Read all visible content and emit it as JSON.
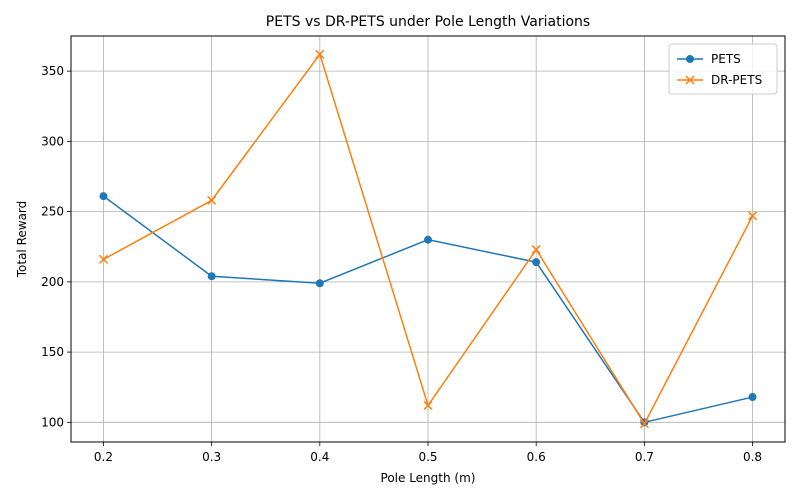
{
  "chart_data": {
    "type": "line",
    "title": "PETS vs DR-PETS under Pole Length Variations",
    "xlabel": "Pole Length (m)",
    "ylabel": "Total Reward",
    "x": [
      0.2,
      0.3,
      0.4,
      0.5,
      0.6,
      0.7,
      0.8
    ],
    "x_tick_labels": [
      "0.2",
      "0.3",
      "0.4",
      "0.5",
      "0.6",
      "0.7",
      "0.8"
    ],
    "y_ticks": [
      100,
      150,
      200,
      250,
      300,
      350
    ],
    "y_tick_labels": [
      "100",
      "150",
      "200",
      "250",
      "300",
      "350"
    ],
    "xlim": [
      0.17,
      0.83
    ],
    "ylim": [
      86,
      375
    ],
    "grid": true,
    "legend_position": "top-right",
    "series": [
      {
        "name": "PETS",
        "values": [
          261,
          204,
          199,
          230,
          214,
          100,
          118
        ],
        "color": "#1f77b4",
        "marker": "circle"
      },
      {
        "name": "DR-PETS",
        "values": [
          216,
          258,
          362,
          112,
          223,
          99,
          247
        ],
        "color": "#ff7f0e",
        "marker": "x"
      }
    ]
  }
}
